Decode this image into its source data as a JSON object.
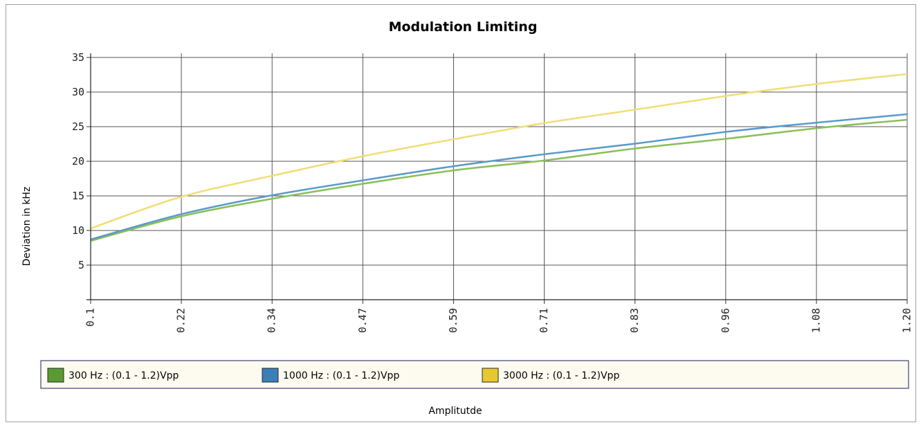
{
  "chart_data": {
    "type": "line",
    "title": "Modulation Limiting",
    "xlabel": "Amplitutde",
    "ylabel": "Deviation in kHz",
    "x_ticks": [
      "0.1",
      "0.22",
      "0.34",
      "0.47",
      "0.59",
      "0.71",
      "0.83",
      "0.96",
      "1.08",
      "1.20"
    ],
    "y_ticks": [
      "5",
      "10",
      "15",
      "20",
      "25",
      "30",
      "35"
    ],
    "xlim": [
      0.1,
      1.2
    ],
    "ylim": [
      0,
      35
    ],
    "grid": true,
    "legend_position": "bottom",
    "x": [
      0.1,
      0.22,
      0.34,
      0.47,
      0.59,
      0.71,
      0.83,
      0.96,
      1.08,
      1.2
    ],
    "series": [
      {
        "name": "300 Hz : (0.1 - 1.2)Vpp",
        "color": "#8cbf5a",
        "swatch": "#5a9a32",
        "values": [
          8.5,
          12.0,
          14.5,
          16.8,
          18.7,
          20.1,
          21.8,
          23.3,
          24.8,
          26.0
        ]
      },
      {
        "name": "1000 Hz : (0.1 - 1.2)Vpp",
        "color": "#5b9bc8",
        "swatch": "#3b7fb8",
        "values": [
          8.7,
          12.3,
          15.0,
          17.3,
          19.3,
          21.0,
          22.5,
          24.3,
          25.6,
          26.8
        ]
      },
      {
        "name": "3000 Hz : (0.1 - 1.2)Vpp",
        "color": "#f0de7a",
        "swatch": "#e8c830",
        "values": [
          10.3,
          14.8,
          17.8,
          20.8,
          23.2,
          25.5,
          27.4,
          29.5,
          31.2,
          32.6
        ]
      }
    ]
  }
}
